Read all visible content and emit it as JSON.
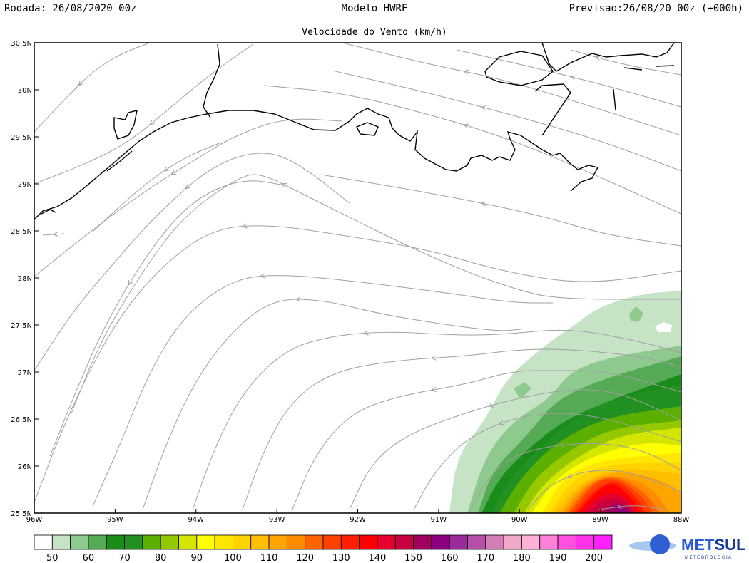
{
  "header": {
    "run": "Rodada: 26/08/2020 00z",
    "model": "Modelo HWRF",
    "forecast": "Previsao:26/08/20 00z (+000h)"
  },
  "subtitle": "Velocidade do Vento (km/h)",
  "map": {
    "lon_range": [
      -96,
      -88
    ],
    "lat_range": [
      25.5,
      30.5
    ],
    "lon_labels": [
      "96W",
      "95W",
      "94W",
      "93W",
      "92W",
      "91W",
      "90W",
      "89W",
      "88W"
    ],
    "lat_labels": [
      "30.5N",
      "30N",
      "29.5N",
      "29N",
      "28.5N",
      "28N",
      "27.5N",
      "27N",
      "26.5N",
      "26N",
      "25.5N"
    ],
    "streamline_color": "#a0a0a0",
    "coast_color": "#000000"
  },
  "colorbar": {
    "colors": [
      "#ffffff",
      "#c6e3c6",
      "#8ec98e",
      "#55aa55",
      "#1a8c1a",
      "#229122",
      "#5aaf00",
      "#96c800",
      "#d2e600",
      "#ffff00",
      "#ffe600",
      "#ffd200",
      "#ffbe00",
      "#ffa500",
      "#ff8c00",
      "#ff6400",
      "#ff4000",
      "#ff1e00",
      "#ff0000",
      "#e6002d",
      "#c80040",
      "#a00060",
      "#8c0080",
      "#9c2a9c",
      "#b84ea8",
      "#d47eb8",
      "#f0a8c8",
      "#ffb0d8",
      "#ff80d8",
      "#ff50e0",
      "#ff30ea",
      "#ff20ff"
    ],
    "labels": [
      "50",
      "60",
      "70",
      "80",
      "90",
      "100",
      "110",
      "120",
      "130",
      "140",
      "150",
      "160",
      "170",
      "180",
      "190",
      "200"
    ]
  },
  "logo": {
    "name": "METSUL",
    "tagline": "METEOROLOGIA",
    "met_color": "#2a5bd7",
    "sul_color": "#1a3a9a"
  }
}
